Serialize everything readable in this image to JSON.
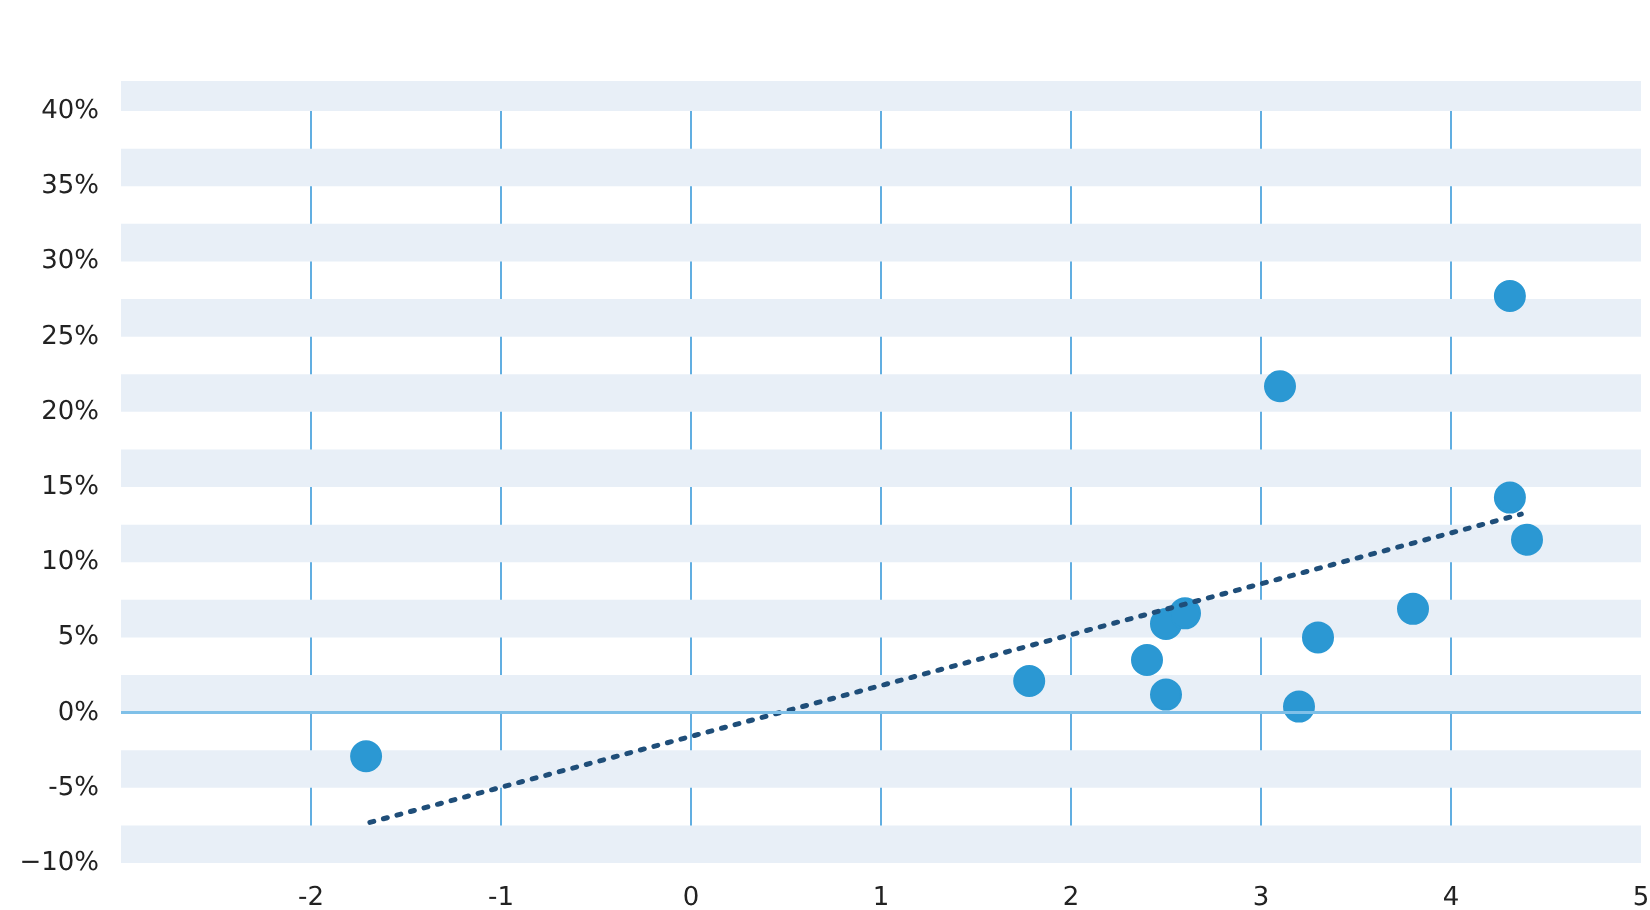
{
  "chart_data": {
    "type": "scatter",
    "x": [
      -1.71,
      1.78,
      2.4,
      2.5,
      2.6,
      2.5,
      3.1,
      3.2,
      3.3,
      3.8,
      4.31,
      4.31,
      4.4
    ],
    "series": [
      {
        "color": "#2b98d3",
        "values": [
          -2.9,
          2.1,
          3.5,
          5.9,
          6.6,
          1.2,
          21.7,
          0.4,
          5.0,
          6.9,
          27.7,
          14.3,
          11.5
        ]
      },
      {
        "type": "line",
        "color": "#1f4e79",
        "line_style": "dotted",
        "marker": "none",
        "x": [
          -1.69,
          4.37
        ],
        "values": [
          -7.3,
          13.2
        ]
      }
    ],
    "marker": "circle",
    "xlim": [
      -3,
      5
    ],
    "ylim": [
      -10,
      42
    ],
    "xticks": [
      -2,
      -1,
      0,
      1,
      2,
      3,
      4,
      5
    ],
    "yticks": [
      {
        "value": -10,
        "label": "−10%"
      },
      {
        "value": -5,
        "label": "-5%"
      },
      {
        "value": 0,
        "label": "0%"
      },
      {
        "value": 5,
        "label": "5%"
      },
      {
        "value": 10,
        "label": "10%"
      },
      {
        "value": 15,
        "label": "15%"
      },
      {
        "value": 20,
        "label": "20%"
      },
      {
        "value": 25,
        "label": "25%"
      },
      {
        "value": 30,
        "label": "30%"
      },
      {
        "value": 35,
        "label": "35%"
      },
      {
        "value": 40,
        "label": "40%"
      }
    ],
    "grid": "x",
    "ref_lines": [
      {
        "axis": "y",
        "value": 0,
        "color": "#7fc0e8"
      }
    ],
    "bands": [
      {
        "axis": "y",
        "from": -10,
        "to": -7.5,
        "color": "#e8eff7"
      },
      {
        "axis": "y",
        "from": -5,
        "to": -2.5,
        "color": "#e8eff7"
      },
      {
        "axis": "y",
        "from": 0,
        "to": 2.5,
        "color": "#e8eff7"
      },
      {
        "axis": "y",
        "from": 5,
        "to": 7.5,
        "color": "#e8eff7"
      },
      {
        "axis": "y",
        "from": 10,
        "to": 12.5,
        "color": "#e8eff7"
      },
      {
        "axis": "y",
        "from": 15,
        "to": 17.5,
        "color": "#e8eff7"
      },
      {
        "axis": "y",
        "from": 20,
        "to": 22.5,
        "color": "#e8eff7"
      },
      {
        "axis": "y",
        "from": 25,
        "to": 27.5,
        "color": "#e8eff7"
      },
      {
        "axis": "y",
        "from": 30,
        "to": 32.5,
        "color": "#e8eff7"
      },
      {
        "axis": "y",
        "from": 35,
        "to": 37.5,
        "color": "#e8eff7"
      },
      {
        "axis": "y",
        "from": 40,
        "to": 42,
        "color": "#e8eff7"
      }
    ]
  }
}
